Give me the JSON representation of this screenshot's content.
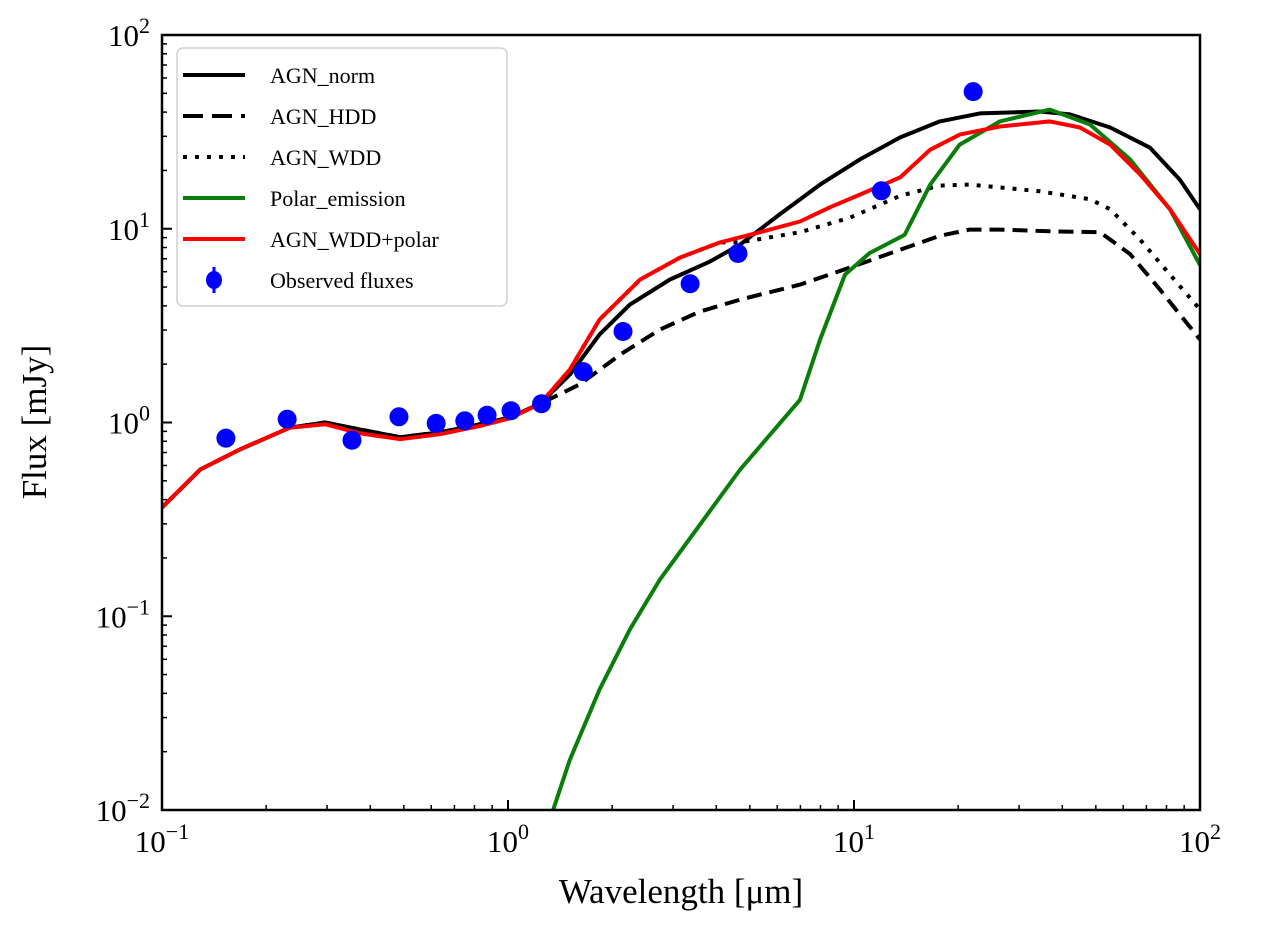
{
  "chart_data": {
    "type": "line",
    "xlabel": "Wavelength [μm]",
    "ylabel": "Flux [mJy]",
    "xscale": "log",
    "yscale": "log",
    "xlim": [
      0.1,
      100
    ],
    "ylim": [
      0.01,
      100
    ],
    "grid": false,
    "legend_position": "top-left",
    "xticklabels": [
      {
        "base": "10",
        "exp": "−1",
        "value": 0.1
      },
      {
        "base": "10",
        "exp": "0",
        "value": 1
      },
      {
        "base": "10",
        "exp": "1",
        "value": 10
      },
      {
        "base": "10",
        "exp": "2",
        "value": 100
      }
    ],
    "yticklabels": [
      {
        "base": "10",
        "exp": "−2",
        "value": 0.01
      },
      {
        "base": "10",
        "exp": "−1",
        "value": 0.1
      },
      {
        "base": "10",
        "exp": "0",
        "value": 1
      },
      {
        "base": "10",
        "exp": "1",
        "value": 10
      },
      {
        "base": "10",
        "exp": "2",
        "value": 100
      }
    ],
    "series": [
      {
        "name": "AGN_norm",
        "color": "#000000",
        "style": "solid",
        "x": [
          0.1,
          0.129,
          0.168,
          0.234,
          0.296,
          0.373,
          0.488,
          0.636,
          0.83,
          1.01,
          1.24,
          1.51,
          1.84,
          2.25,
          2.94,
          3.84,
          4.69,
          6.11,
          7.98,
          10.4,
          13.6,
          17.7,
          23.1,
          34.5,
          42.1,
          55.0,
          71.7,
          87.5,
          100
        ],
        "y": [
          0.364,
          0.572,
          0.726,
          0.94,
          1.0,
          0.92,
          0.84,
          0.89,
          0.98,
          1.06,
          1.25,
          1.77,
          2.85,
          4.06,
          5.47,
          6.78,
          8.29,
          11.9,
          16.9,
          22.8,
          29.6,
          35.8,
          39.4,
          40.3,
          38.9,
          33.3,
          26.2,
          17.9,
          12.6
        ]
      },
      {
        "name": "AGN_HDD",
        "color": "#000000",
        "style": "dashed",
        "x": [
          0.1,
          0.129,
          0.168,
          0.234,
          0.296,
          0.373,
          0.488,
          0.636,
          0.83,
          1.01,
          1.24,
          1.61,
          2.11,
          2.75,
          3.59,
          4.69,
          6.98,
          9.73,
          13.6,
          17.7,
          21.6,
          26.4,
          36.8,
          51.4,
          62.8,
          76.6,
          100
        ],
        "y": [
          0.364,
          0.572,
          0.726,
          0.94,
          1.0,
          0.92,
          0.84,
          0.89,
          0.98,
          1.06,
          1.25,
          1.57,
          2.24,
          3.02,
          3.74,
          4.31,
          5.15,
          6.3,
          7.8,
          9.2,
          9.9,
          9.9,
          9.7,
          9.6,
          7.4,
          4.86,
          2.68
        ]
      },
      {
        "name": "AGN_WDD",
        "color": "#000000",
        "style": "dotted",
        "x": [
          0.1,
          0.129,
          0.168,
          0.234,
          0.296,
          0.373,
          0.488,
          0.636,
          0.83,
          1.01,
          1.24,
          1.51,
          1.84,
          2.41,
          3.14,
          4.1,
          4.69,
          6.98,
          9.73,
          13.6,
          17.7,
          21.6,
          34.5,
          48.1,
          55.0,
          67.1,
          81.9,
          100
        ],
        "y": [
          0.364,
          0.572,
          0.726,
          0.94,
          1.0,
          0.92,
          0.84,
          0.89,
          0.98,
          1.06,
          1.25,
          1.88,
          3.4,
          5.47,
          7.1,
          8.5,
          8.5,
          9.6,
          11.4,
          14.8,
          16.7,
          16.9,
          15.6,
          14.2,
          12.6,
          8.8,
          5.8,
          3.83
        ]
      },
      {
        "name": "Polar_emission",
        "color": "#0a7d0a",
        "style": "solid",
        "x": [
          1.35,
          1.51,
          1.84,
          2.25,
          2.75,
          3.59,
          4.69,
          6.98,
          7.98,
          9.42,
          11.1,
          14.0,
          16.6,
          20.2,
          26.4,
          36.8,
          48.1,
          62.8,
          81.9,
          100
        ],
        "y": [
          0.01,
          0.0182,
          0.0419,
          0.0855,
          0.155,
          0.298,
          0.572,
          1.31,
          2.68,
          5.8,
          7.5,
          9.3,
          16.9,
          27.2,
          35.8,
          41.2,
          34.5,
          22.8,
          12.6,
          6.5
        ]
      },
      {
        "name": "AGN_WDD+polar",
        "color": "#ff0000",
        "style": "solid",
        "x": [
          0.1,
          0.129,
          0.168,
          0.234,
          0.296,
          0.373,
          0.488,
          0.636,
          0.83,
          1.01,
          1.24,
          1.51,
          1.84,
          2.41,
          3.14,
          4.1,
          5.35,
          6.98,
          8.52,
          10.4,
          13.6,
          16.6,
          20.2,
          26.4,
          36.8,
          45.0,
          55.0,
          67.1,
          81.9,
          100
        ],
        "y": [
          0.364,
          0.572,
          0.726,
          0.94,
          0.98,
          0.88,
          0.82,
          0.87,
          0.96,
          1.05,
          1.25,
          1.88,
          3.4,
          5.47,
          7.1,
          8.5,
          9.6,
          10.9,
          12.9,
          15.0,
          18.4,
          25.6,
          30.6,
          33.7,
          35.8,
          33.3,
          27.2,
          19.1,
          12.6,
          7.4
        ]
      }
    ],
    "observed": {
      "name": "Observed fluxes",
      "color": "#0000ff",
      "x": [
        0.153,
        0.23,
        0.354,
        0.484,
        0.62,
        0.75,
        0.87,
        1.02,
        1.25,
        1.65,
        2.15,
        3.36,
        4.62,
        12.0,
        22.1
      ],
      "y": [
        0.83,
        1.04,
        0.81,
        1.07,
        0.99,
        1.02,
        1.09,
        1.15,
        1.25,
        1.83,
        2.95,
        5.2,
        7.45,
        15.7,
        51
      ]
    }
  }
}
